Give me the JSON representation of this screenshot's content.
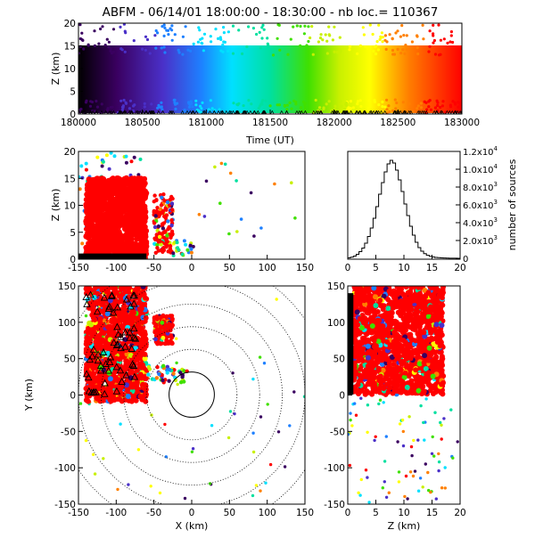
{
  "chart_data": [
    {
      "type": "scatter",
      "panel": "height-time",
      "title": "ABFM - 06/14/01 18:00:00 - 18:30:00 - nb loc.= 110367",
      "xlabel": "Time (UT)",
      "ylabel": "Z (km)",
      "xlim": [
        180000,
        183000
      ],
      "ylim": [
        0,
        20
      ],
      "xticks": [
        "180000",
        "180500",
        "181000",
        "181500",
        "182000",
        "182500",
        "183000"
      ],
      "yticks": [
        "0",
        "5",
        "10",
        "15",
        "20"
      ],
      "color_encoding": "time (purple to red)",
      "dense_band_z": [
        3,
        13
      ],
      "station_markers": "triangles along Z=0"
    },
    {
      "type": "scatter",
      "panel": "x-z projection",
      "xlabel": "",
      "ylabel": "Z (km)",
      "xlim": [
        -150,
        150
      ],
      "ylim": [
        0,
        20
      ],
      "xticks": [
        "-150",
        "-100",
        "-50",
        "0",
        "50",
        "100",
        "150"
      ],
      "yticks": [
        "0",
        "5",
        "10",
        "15",
        "20"
      ],
      "main_cluster": {
        "x_range": [
          -140,
          -60
        ],
        "z_range": [
          0,
          15
        ]
      },
      "secondary_cluster": {
        "x_range": [
          -50,
          -25
        ],
        "z_range": [
          1,
          12
        ]
      }
    },
    {
      "type": "line",
      "panel": "height histogram",
      "xlabel": "",
      "ylabel": "number of sources",
      "xlim": [
        0,
        20
      ],
      "ylim": [
        0,
        12000
      ],
      "xticks": [
        "0",
        "5",
        "10",
        "15",
        "20"
      ],
      "yticks": [
        {
          "base": "0",
          "exp": ""
        },
        {
          "base": "2.0x10",
          "exp": "3"
        },
        {
          "base": "4.0x10",
          "exp": "3"
        },
        {
          "base": "6.0x10",
          "exp": "3"
        },
        {
          "base": "8.0x10",
          "exp": "3"
        },
        {
          "base": "1.0x10",
          "exp": "4"
        },
        {
          "base": "1.2x10",
          "exp": "4"
        }
      ],
      "bin_width_km": 0.5,
      "bins_z": [
        0,
        0.5,
        1,
        1.5,
        2,
        2.5,
        3,
        3.5,
        4,
        4.5,
        5,
        5.5,
        6,
        6.5,
        7,
        7.5,
        8,
        8.5,
        9,
        9.5,
        10,
        10.5,
        11,
        11.5,
        12,
        12.5,
        13,
        13.5,
        14,
        14.5,
        15,
        15.5,
        16,
        16.5,
        17,
        17.5,
        18,
        18.5,
        19,
        19.5
      ],
      "counts": [
        50,
        120,
        250,
        450,
        750,
        1150,
        1700,
        2450,
        3400,
        4500,
        5800,
        7200,
        8500,
        9700,
        10600,
        11000,
        10700,
        9900,
        8800,
        7500,
        6100,
        4800,
        3600,
        2600,
        1800,
        1200,
        800,
        520,
        340,
        220,
        150,
        100,
        70,
        50,
        35,
        25,
        15,
        10,
        6,
        4
      ]
    },
    {
      "type": "scatter",
      "panel": "plan view x-y",
      "xlabel": "X (km)",
      "ylabel": "Y (km)",
      "xlim": [
        -150,
        150
      ],
      "ylim": [
        -150,
        150
      ],
      "xticks": [
        "-150",
        "-100",
        "-50",
        "0",
        "50",
        "100",
        "150"
      ],
      "yticks": [
        "-150",
        "-100",
        "-50",
        "0",
        "50",
        "100",
        "150"
      ],
      "range_rings_km": [
        30,
        60,
        90,
        120,
        150,
        180,
        210
      ],
      "solid_ring_km": 30,
      "main_cluster": {
        "x_range": [
          -140,
          -60
        ],
        "y_range": [
          -10,
          150
        ]
      },
      "secondary_cluster": {
        "x_range": [
          -50,
          -25
        ],
        "y_range": [
          70,
          110
        ]
      }
    },
    {
      "type": "scatter",
      "panel": "z-y projection",
      "xlabel": "Z (km)",
      "ylabel": "",
      "xlim": [
        0,
        20
      ],
      "ylim": [
        -150,
        150
      ],
      "xticks": [
        "0",
        "5",
        "10",
        "15",
        "20"
      ],
      "yticks": [
        "-150",
        "-100",
        "-50",
        "0",
        "50",
        "100",
        "150"
      ],
      "main_cluster": {
        "z_range": [
          1,
          17
        ],
        "y_range": [
          0,
          150
        ]
      }
    }
  ]
}
